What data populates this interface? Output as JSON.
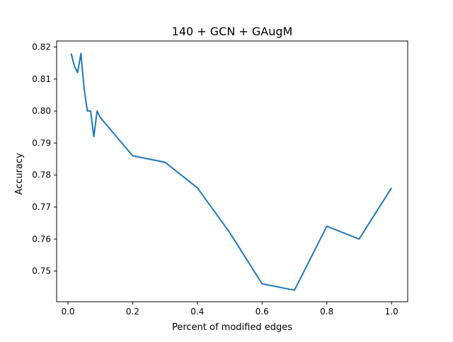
{
  "chart_data": {
    "type": "line",
    "title": "140 + GCN + GAugM",
    "xlabel": "Percent of modified edges",
    "ylabel": "Accuracy",
    "xlim": [
      -0.035,
      1.05
    ],
    "ylim": [
      0.7404,
      0.8219
    ],
    "xticks": [
      0.0,
      0.2,
      0.4,
      0.6,
      0.8,
      1.0
    ],
    "xtick_labels": [
      "0.0",
      "0.2",
      "0.4",
      "0.6",
      "0.8",
      "1.0"
    ],
    "yticks": [
      0.75,
      0.76,
      0.77,
      0.78,
      0.79,
      0.8,
      0.81,
      0.82
    ],
    "ytick_labels": [
      "0.75",
      "0.76",
      "0.77",
      "0.78",
      "0.79",
      "0.80",
      "0.81",
      "0.82"
    ],
    "grid": false,
    "series": [
      {
        "color": "#1f77b4",
        "x": [
          0.01,
          0.02,
          0.03,
          0.04,
          0.05,
          0.06,
          0.07,
          0.08,
          0.09,
          0.1,
          0.2,
          0.3,
          0.4,
          0.5,
          0.6,
          0.7,
          0.8,
          0.9,
          1.0
        ],
        "y": [
          0.818,
          0.814,
          0.812,
          0.818,
          0.807,
          0.8,
          0.8,
          0.792,
          0.8,
          0.798,
          0.786,
          0.784,
          0.776,
          0.762,
          0.746,
          0.744,
          0.764,
          0.76,
          0.776
        ]
      }
    ]
  }
}
